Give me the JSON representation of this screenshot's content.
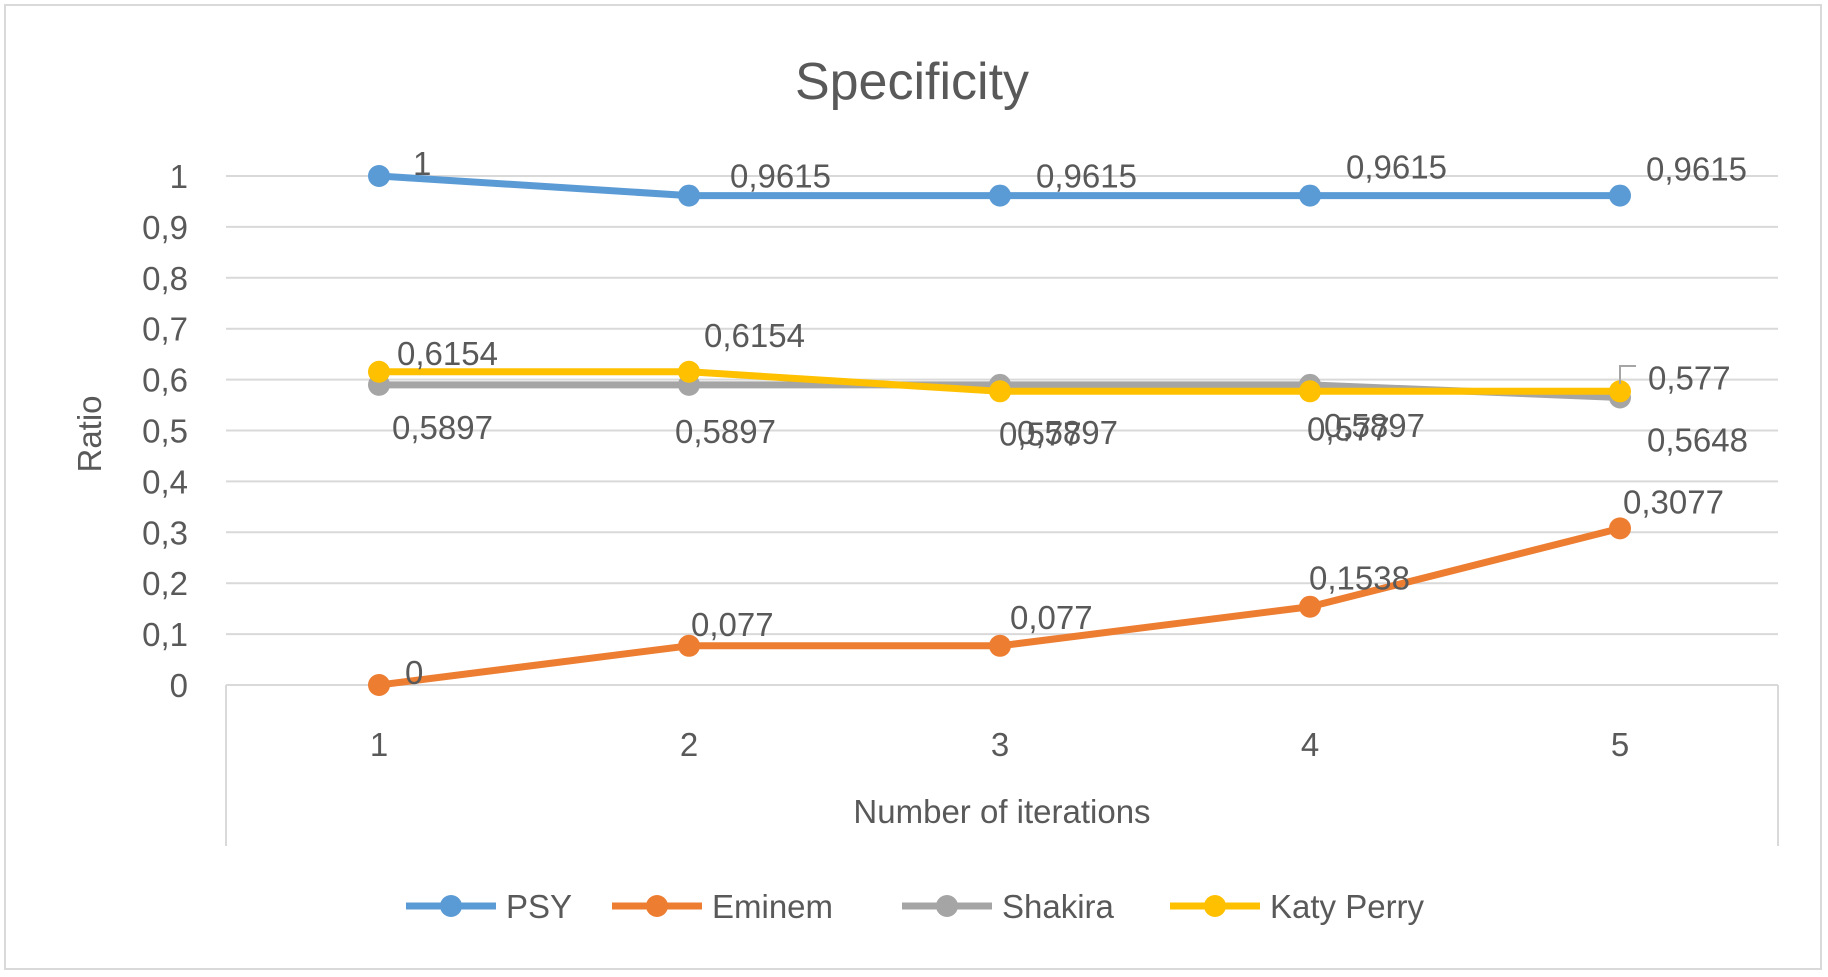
{
  "chart_data": {
    "type": "line",
    "title": "Specificity",
    "xlabel": "Number of iterations",
    "ylabel": "Ratio",
    "categories": [
      "1",
      "2",
      "3",
      "4",
      "5"
    ],
    "ylim": [
      0,
      1
    ],
    "yticks": [
      "0",
      "0,1",
      "0,2",
      "0,3",
      "0,4",
      "0,5",
      "0,6",
      "0,7",
      "0,8",
      "0,9",
      "1"
    ],
    "ytick_values": [
      0,
      0.1,
      0.2,
      0.3,
      0.4,
      0.5,
      0.6,
      0.7,
      0.8,
      0.9,
      1
    ],
    "grid": true,
    "legend_position": "bottom",
    "series": [
      {
        "name": "PSY",
        "color": "#5b9bd5",
        "values": [
          1,
          0.9615,
          0.9615,
          0.9615,
          0.9615
        ],
        "labels": [
          "1",
          "0,9615",
          "0,9615",
          "0,9615",
          "0,9615"
        ]
      },
      {
        "name": "Eminem",
        "color": "#ed7d31",
        "values": [
          0,
          0.077,
          0.077,
          0.1538,
          0.3077
        ],
        "labels": [
          "0",
          "0,077",
          "0,077",
          "0,1538",
          "0,3077"
        ]
      },
      {
        "name": "Shakira",
        "color": "#a5a5a5",
        "values": [
          0.5897,
          0.5897,
          0.5897,
          0.5897,
          0.5648
        ],
        "labels": [
          "0,5897",
          "0,5897",
          "0,5897",
          "0,5897",
          "0,5648"
        ]
      },
      {
        "name": "Katy Perry",
        "color": "#ffc000",
        "values": [
          0.6154,
          0.6154,
          0.577,
          0.577,
          0.577
        ],
        "labels": [
          "0,6154",
          "0,6154",
          "0,577",
          "0,577",
          "0,577"
        ]
      }
    ]
  }
}
